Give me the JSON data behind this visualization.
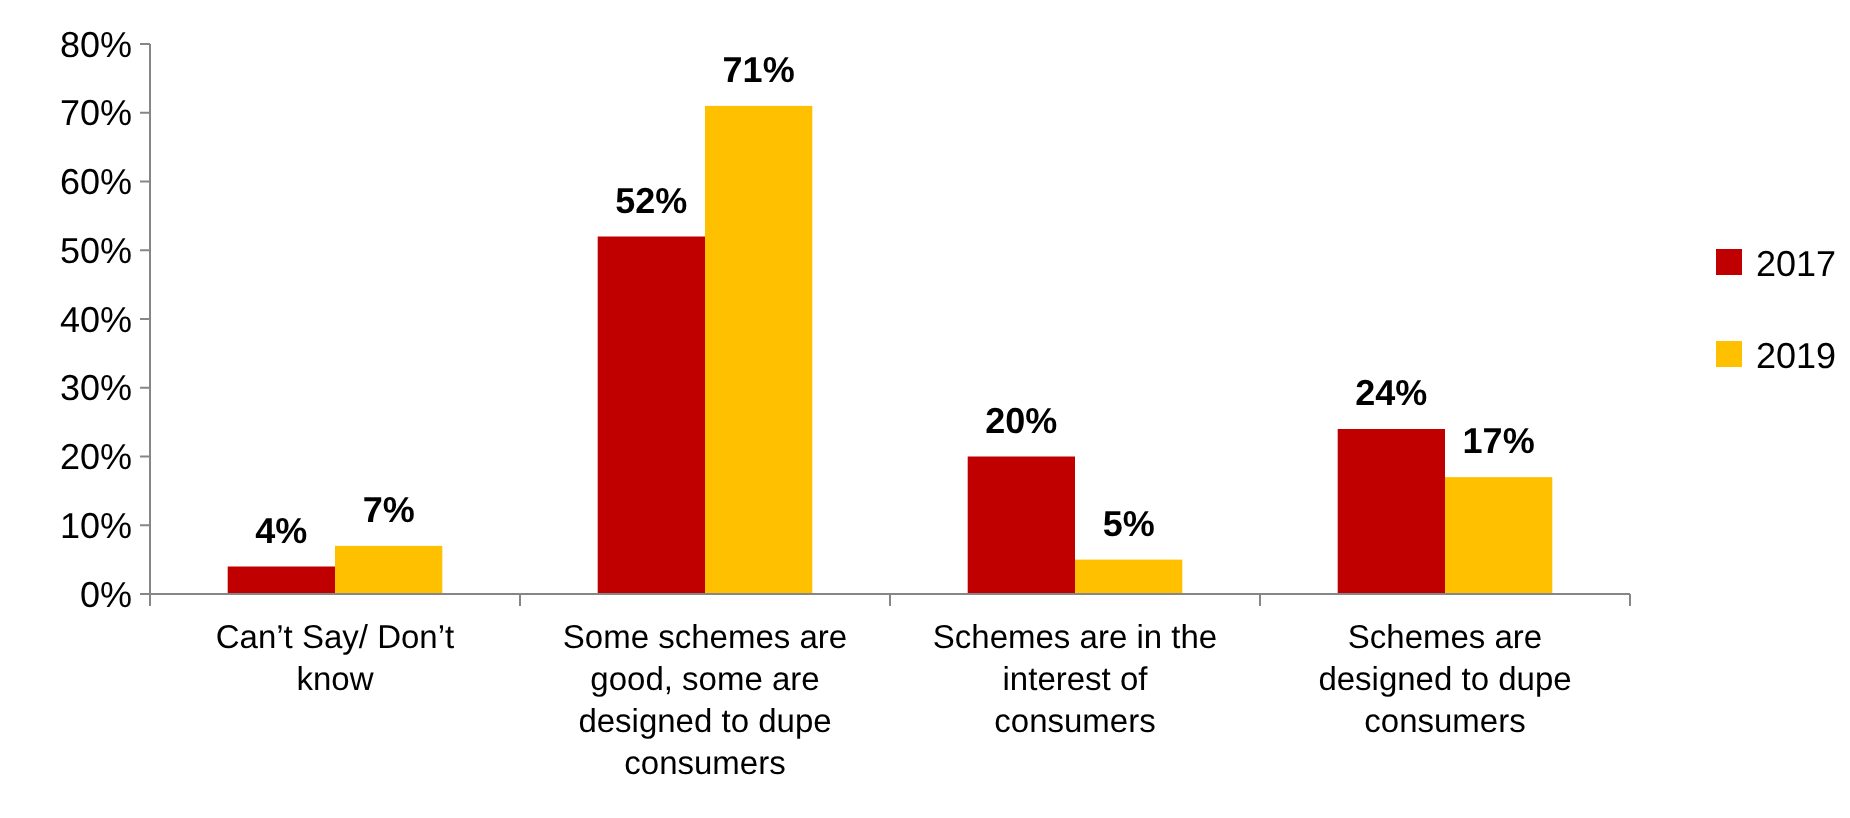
{
  "chart_data": {
    "type": "bar",
    "categories": [
      "Can’t Say/ Don’t know",
      "Some schemes are good, some are designed to dupe consumers",
      "Schemes are in the interest of consumers",
      "Schemes are designed to dupe consumers"
    ],
    "series": [
      {
        "name": "2017",
        "color": "#c00000",
        "values": [
          4,
          52,
          20,
          24
        ],
        "value_labels": [
          "4%",
          "52%",
          "20%",
          "24%"
        ]
      },
      {
        "name": "2019",
        "color": "#ffc000",
        "values": [
          7,
          71,
          5,
          17
        ],
        "value_labels": [
          "7%",
          "71%",
          "5%",
          "17%"
        ]
      }
    ],
    "ylim": [
      0,
      80
    ],
    "yticks": [
      {
        "value": 0,
        "label": "0%"
      },
      {
        "value": 10,
        "label": "10%"
      },
      {
        "value": 20,
        "label": "20%"
      },
      {
        "value": 30,
        "label": "30%"
      },
      {
        "value": 40,
        "label": "40%"
      },
      {
        "value": 50,
        "label": "50%"
      },
      {
        "value": 60,
        "label": "60%"
      },
      {
        "value": 70,
        "label": "70%"
      },
      {
        "value": 80,
        "label": "80%"
      }
    ],
    "grid": false,
    "legend": "right"
  }
}
